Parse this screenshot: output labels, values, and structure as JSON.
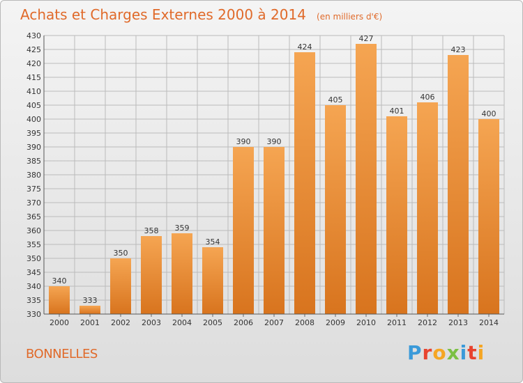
{
  "header": {
    "title": "Achats et Charges Externes 2000 à 2014",
    "subtitle": "(en milliers d'€)"
  },
  "footer": {
    "commune": "BONNELLES",
    "brand": "Proxiti",
    "brand_colors": [
      "#3a9ad9",
      "#e8432e",
      "#f5a623",
      "#7bc043",
      "#3a9ad9",
      "#e8432e",
      "#f5a623"
    ]
  },
  "colors": {
    "bar_light": "#f5a552",
    "bar_dark": "#d8741e",
    "grid": "#bbbbbb",
    "text": "#333333",
    "title": "#e06a2a"
  },
  "chart_data": {
    "type": "bar",
    "title": "Achats et Charges Externes 2000 à 2014",
    "subtitle": "(en milliers d'€)",
    "categories": [
      "2000",
      "2001",
      "2002",
      "2003",
      "2004",
      "2005",
      "2006",
      "2007",
      "2008",
      "2009",
      "2010",
      "2011",
      "2012",
      "2013",
      "2014"
    ],
    "values": [
      340,
      333,
      350,
      358,
      359,
      354,
      390,
      390,
      424,
      405,
      427,
      401,
      406,
      423,
      400
    ],
    "ylim": [
      330,
      430
    ],
    "yticks": [
      330,
      335,
      340,
      345,
      350,
      355,
      360,
      365,
      370,
      375,
      380,
      385,
      390,
      395,
      400,
      405,
      410,
      415,
      420,
      425,
      430
    ],
    "grid": true
  }
}
